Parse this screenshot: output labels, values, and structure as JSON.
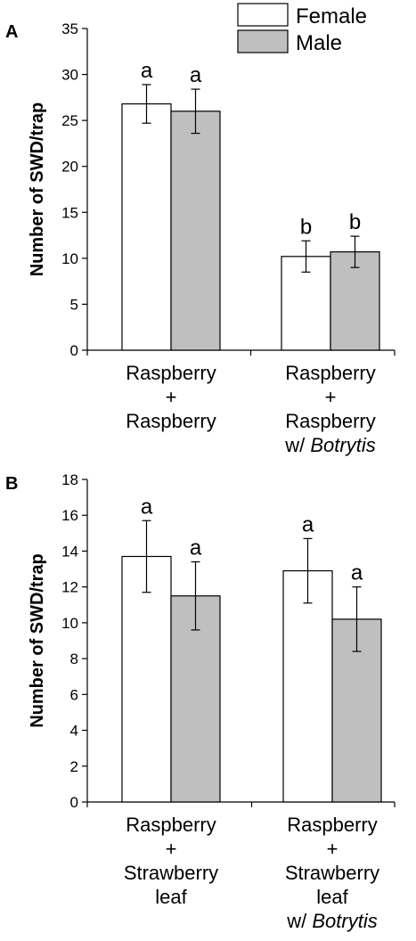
{
  "legend": {
    "female": "Female",
    "male": "Male"
  },
  "colors": {
    "female": "#ffffff",
    "male": "#bfbfbf",
    "stroke": "#000000"
  },
  "chart_data": [
    {
      "panel": "A",
      "type": "bar",
      "ylabel": "Number of SWD/trap",
      "ylim": [
        0,
        35
      ],
      "yticks": [
        0,
        5,
        10,
        15,
        20,
        25,
        30,
        35
      ],
      "grid": false,
      "legend_position": "top-right",
      "categories": [
        {
          "lines": [
            "Raspberry",
            "+",
            "Raspberry"
          ],
          "italic_line": ""
        },
        {
          "lines": [
            "Raspberry",
            "+",
            "Raspberry"
          ],
          "w_prefix": "w/ ",
          "italic_line": "Botrytis"
        }
      ],
      "series": [
        {
          "name": "Female",
          "values": [
            26.8,
            10.2
          ],
          "errors": [
            2.1,
            1.7
          ],
          "letters": [
            "a",
            "b"
          ]
        },
        {
          "name": "Male",
          "values": [
            26.0,
            10.7
          ],
          "errors": [
            2.4,
            1.7
          ],
          "letters": [
            "a",
            "b"
          ]
        }
      ]
    },
    {
      "panel": "B",
      "type": "bar",
      "ylabel": "Number of SWD/trap",
      "ylim": [
        0,
        18
      ],
      "yticks": [
        0,
        2,
        4,
        6,
        8,
        10,
        12,
        14,
        16,
        18
      ],
      "grid": false,
      "categories": [
        {
          "lines": [
            "Raspberry",
            "+",
            "Strawberry",
            "leaf"
          ],
          "italic_line": ""
        },
        {
          "lines": [
            "Raspberry",
            "+",
            "Strawberry",
            "leaf"
          ],
          "w_prefix": "w/ ",
          "italic_line": "Botrytis"
        }
      ],
      "series": [
        {
          "name": "Female",
          "values": [
            13.7,
            12.9
          ],
          "errors": [
            2.0,
            1.8
          ],
          "letters": [
            "a",
            "a"
          ]
        },
        {
          "name": "Male",
          "values": [
            11.5,
            10.2
          ],
          "errors": [
            1.9,
            1.8
          ],
          "letters": [
            "a",
            "a"
          ]
        }
      ]
    }
  ]
}
